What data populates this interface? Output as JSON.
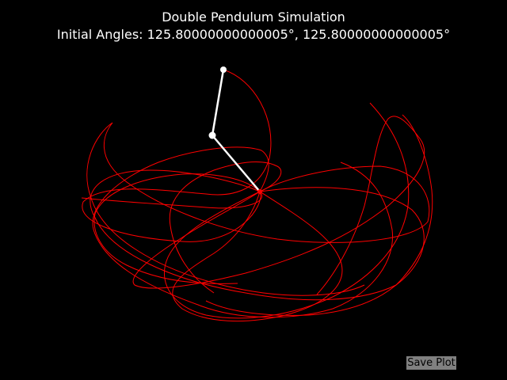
{
  "window": {
    "title_line1": "Double Pendulum Simulation",
    "title_line2": "Initial Angles: 125.80000000000005°, 125.80000000000005°"
  },
  "controls": {
    "save_label": "Save Plot"
  },
  "colors": {
    "background": "#000000",
    "trace": "#ff0000",
    "rod": "#ffffff",
    "button": "#808080"
  },
  "pendulum": {
    "initial_angles_deg": [
      125.80000000000005,
      125.80000000000005
    ]
  }
}
